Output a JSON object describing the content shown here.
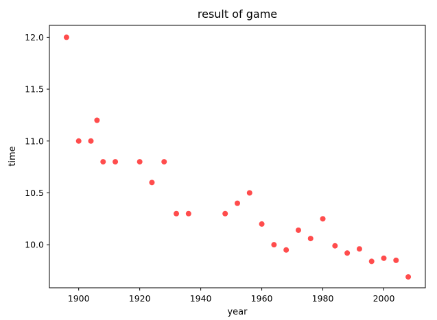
{
  "chart_data": {
    "type": "scatter",
    "title": "result of game",
    "xlabel": "year",
    "ylabel": "time",
    "xlim": [
      1890.4,
      2013.6
    ],
    "ylim": [
      9.585,
      12.115
    ],
    "x_ticks": [
      1900,
      1920,
      1940,
      1960,
      1980,
      2000
    ],
    "y_ticks": [
      10.0,
      10.5,
      11.0,
      11.5,
      12.0
    ],
    "x_tick_labels": [
      "1900",
      "1920",
      "1940",
      "1960",
      "1980",
      "2000"
    ],
    "y_tick_labels": [
      "10.0",
      "10.5",
      "11.0",
      "11.5",
      "12.0"
    ],
    "grid": false,
    "marker_color": "#ff0000",
    "marker_alpha": 0.7,
    "series": [
      {
        "x": [
          1896,
          1900,
          1904,
          1906,
          1908,
          1912,
          1920,
          1924,
          1928,
          1932,
          1936,
          1948,
          1952,
          1956,
          1960,
          1964,
          1968,
          1972,
          1976,
          1980,
          1984,
          1988,
          1992,
          1996,
          2000,
          2004,
          2008
        ],
        "y": [
          12.0,
          11.0,
          11.0,
          11.2,
          10.8,
          10.8,
          10.8,
          10.6,
          10.8,
          10.3,
          10.3,
          10.3,
          10.4,
          10.5,
          10.2,
          10.0,
          9.95,
          10.14,
          10.06,
          10.25,
          9.99,
          9.92,
          9.96,
          9.84,
          9.87,
          9.85,
          9.69
        ]
      }
    ]
  }
}
